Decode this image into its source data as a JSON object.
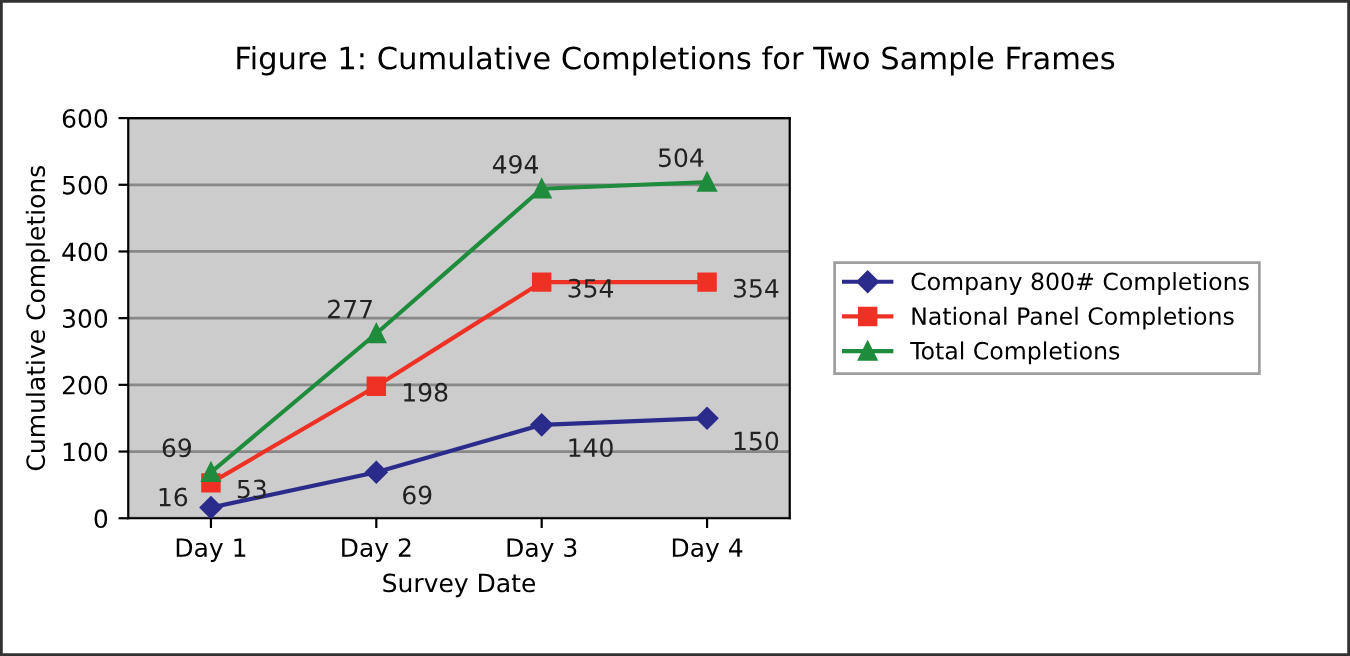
{
  "chart_data": {
    "type": "line",
    "title": "Figure 1: Cumulative Completions for Two Sample Frames",
    "xlabel": "Survey Date",
    "ylabel": "Cumulative Completions",
    "categories": [
      "Day 1",
      "Day 2",
      "Day 3",
      "Day 4"
    ],
    "series": [
      {
        "name": "Company 800# Completions",
        "color": "#2b2b8c",
        "marker": "diamond",
        "values": [
          16,
          69,
          140,
          150
        ]
      },
      {
        "name": "National Panel Completions",
        "color": "#ee3124",
        "marker": "square",
        "values": [
          53,
          198,
          354,
          354
        ]
      },
      {
        "name": "Total Completions",
        "color": "#1e8c3c",
        "marker": "triangle",
        "values": [
          69,
          277,
          494,
          504
        ]
      }
    ],
    "ylim": [
      0,
      600
    ],
    "yticks": [
      0,
      100,
      200,
      300,
      400,
      500,
      600
    ],
    "grid": "y",
    "legend": "right",
    "data_labels": true
  }
}
